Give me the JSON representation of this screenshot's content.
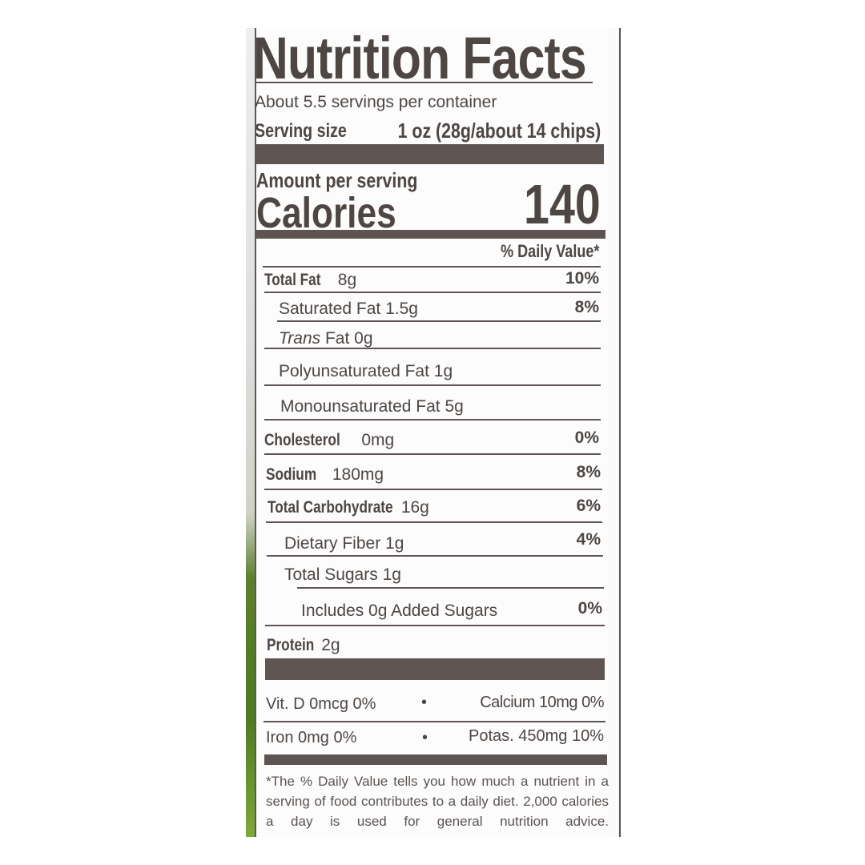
{
  "label": {
    "title": "Nutrition Facts",
    "servings_per_container": "About 5.5 servings per container",
    "serving_size_label": "Serving size",
    "serving_size_value": "1 oz (28g/about 14 chips)",
    "amount_per_serving": "Amount per serving",
    "calories_label": "Calories",
    "calories_value": "140",
    "daily_value_header": "% Daily Value*",
    "nutrients": [
      {
        "name": "Total Fat",
        "amount": "8g",
        "dv": "10%"
      },
      {
        "name": "Saturated Fat 1.5g",
        "amount": "",
        "dv": "8%"
      },
      {
        "name": "Trans",
        "amount": "Fat 0g",
        "dv": ""
      },
      {
        "name": "Polyunsaturated Fat 1g",
        "amount": "",
        "dv": ""
      },
      {
        "name": "Monounsaturated Fat 5g",
        "amount": "",
        "dv": ""
      },
      {
        "name": "Cholesterol",
        "amount": "0mg",
        "dv": "0%"
      },
      {
        "name": "Sodium",
        "amount": "180mg",
        "dv": "8%"
      },
      {
        "name": "Total Carbohydrate",
        "amount": "16g",
        "dv": "6%"
      },
      {
        "name": "Dietary Fiber 1g",
        "amount": "",
        "dv": "4%"
      },
      {
        "name": "Total Sugars 1g",
        "amount": "",
        "dv": ""
      },
      {
        "name": "Includes 0g Added Sugars",
        "amount": "",
        "dv": "0%"
      },
      {
        "name": "Protein",
        "amount": "2g",
        "dv": ""
      }
    ],
    "vitamins": {
      "vit_d": "Vit. D 0mcg 0%",
      "calcium": "Calcium 10mg 0%",
      "iron": "Iron 0mg 0%",
      "potassium": "Potas. 450mg 10%",
      "separator": "•"
    },
    "footnote": "*The % Daily Value tells you how much a nutrient in a serving of food contributes to a daily diet. 2,000 calories a day is used for general nutrition advice."
  },
  "colors": {
    "ink": "#4d4643",
    "package_green": "#4d7a22"
  }
}
